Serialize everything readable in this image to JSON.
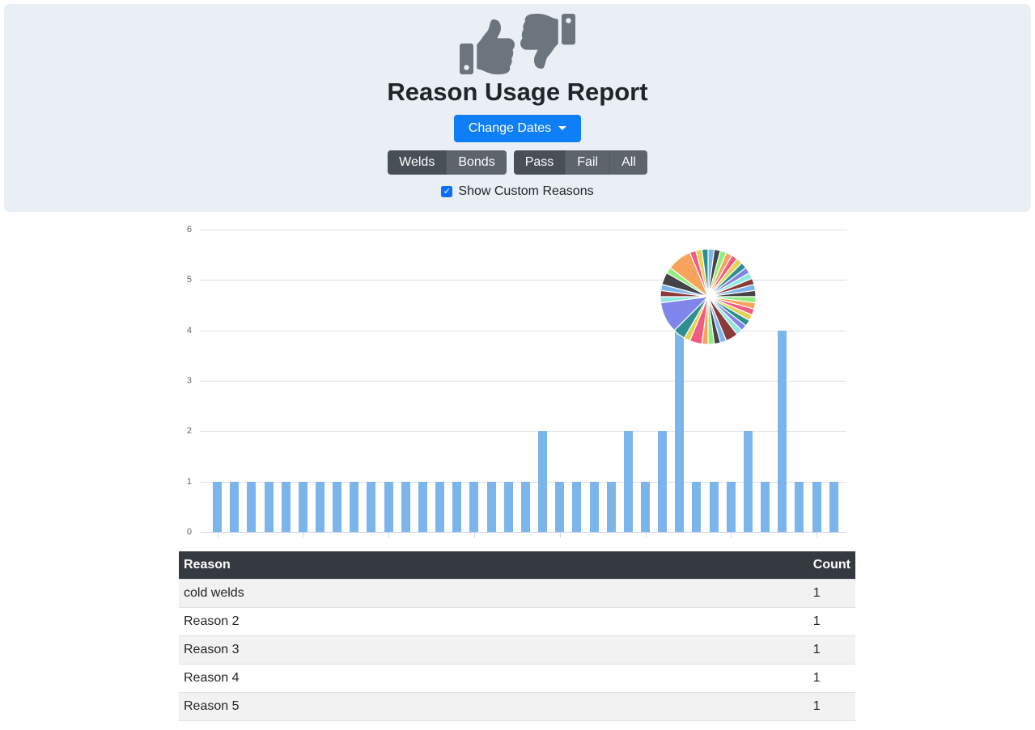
{
  "header": {
    "title": "Reason Usage Report",
    "change_dates_label": "Change Dates",
    "show_custom_reasons_label": "Show Custom Reasons",
    "show_custom_reasons_checked": true,
    "filter_groups": [
      {
        "name": "weld-bond",
        "buttons": [
          {
            "label": "Welds",
            "active": true
          },
          {
            "label": "Bonds",
            "active": false
          }
        ]
      },
      {
        "name": "pass-fail-all",
        "buttons": [
          {
            "label": "Pass",
            "active": true
          },
          {
            "label": "Fail",
            "active": false
          },
          {
            "label": "All",
            "active": false
          }
        ]
      }
    ]
  },
  "chart_data": [
    {
      "type": "bar",
      "title": "",
      "xlabel": "",
      "ylabel": "",
      "values": [
        1,
        1,
        1,
        1,
        1,
        1,
        1,
        1,
        1,
        1,
        1,
        1,
        1,
        1,
        1,
        1,
        1,
        1,
        1,
        2,
        1,
        1,
        1,
        1,
        2,
        1,
        2,
        5,
        1,
        1,
        1,
        2,
        1,
        4,
        1,
        1,
        1
      ],
      "ylim": [
        0,
        6
      ],
      "yticks": [
        0,
        1,
        2,
        3,
        4,
        5,
        6
      ],
      "x_tick_interval": 5,
      "x_labels_visible": false,
      "grid": "horizontal",
      "bar_color": "#7cb5ec",
      "legend": "none"
    },
    {
      "type": "pie",
      "title": "",
      "values": [
        1,
        1,
        1,
        1,
        1,
        1,
        1,
        1,
        1,
        1,
        1,
        1,
        1,
        1,
        1,
        1,
        1,
        1,
        1,
        2,
        1,
        1,
        1,
        1,
        2,
        1,
        2,
        5,
        1,
        1,
        1,
        2,
        1,
        4,
        1,
        1,
        1
      ],
      "palette": [
        "#7cb5ec",
        "#434348",
        "#90ed7d",
        "#f7a35c",
        "#f15c80",
        "#e4d354",
        "#2b908f",
        "#8085e9",
        "#91e8e1",
        "#8b3a3a"
      ],
      "legend": "none",
      "layout_hint": "overlay above tallest bars, upper right of bar chart"
    }
  ],
  "table": {
    "headers": [
      "Reason",
      "Count"
    ],
    "rows": [
      {
        "reason": "cold welds",
        "count": "1"
      },
      {
        "reason": "Reason 2",
        "count": "1"
      },
      {
        "reason": "Reason 3",
        "count": "1"
      },
      {
        "reason": "Reason 4",
        "count": "1"
      },
      {
        "reason": "Reason 5",
        "count": "1"
      }
    ]
  },
  "colors": {
    "primary_button": "#0e7ef9",
    "checkbox": "#0d6efd",
    "panel_bg": "#eaeff6",
    "bar": "#7cb5ec",
    "table_header_bg": "#343a40",
    "button_group_active": "#494f56",
    "button_group_inactive": "#5d646c",
    "icon_gray": "#6c757d"
  }
}
